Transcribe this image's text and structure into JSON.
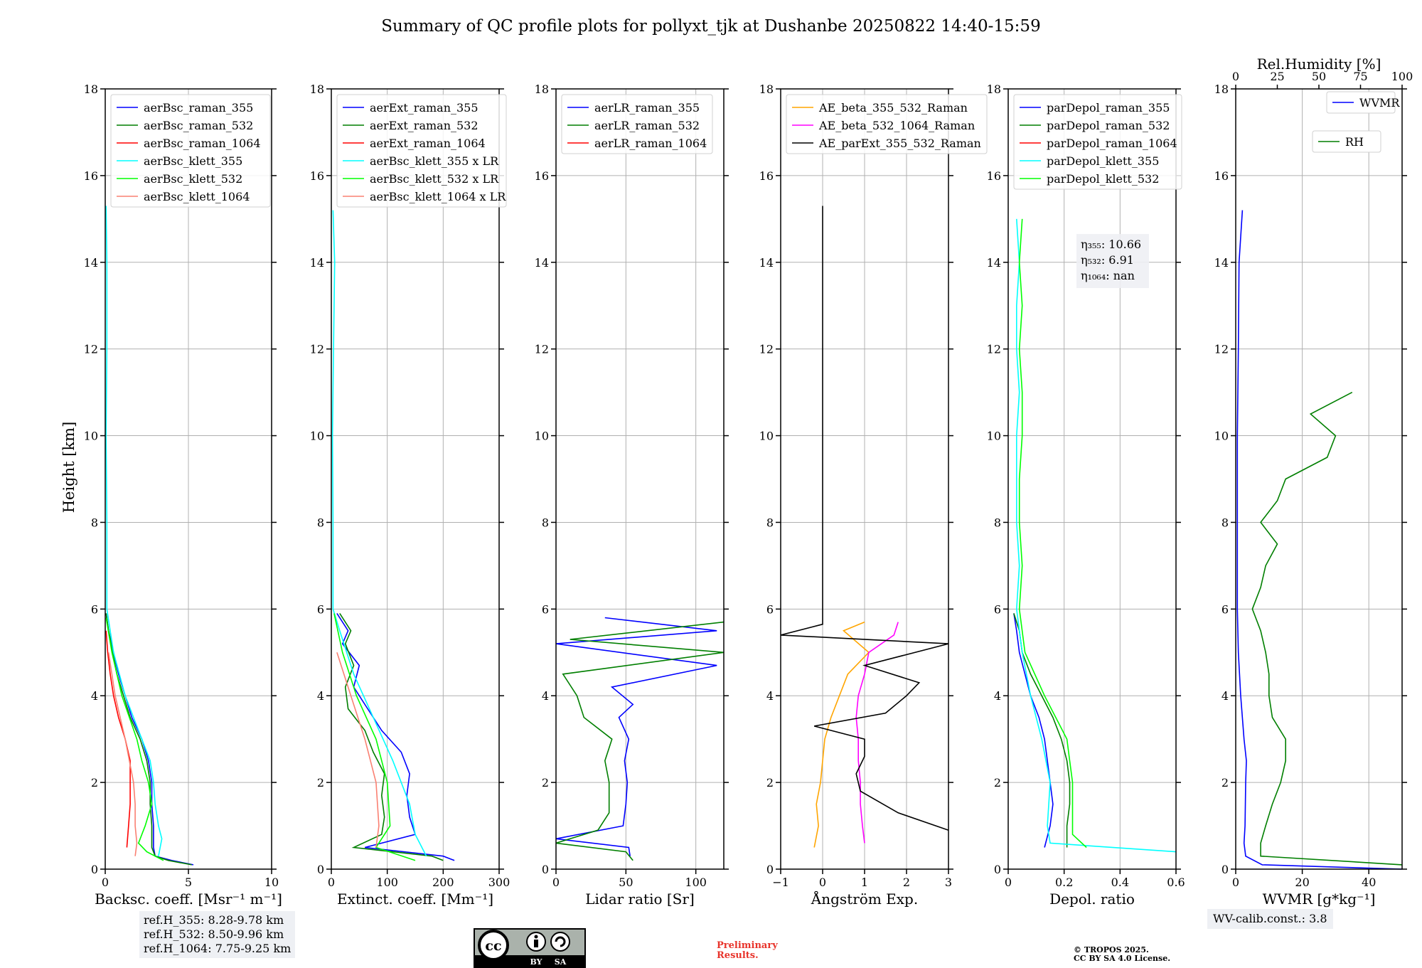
{
  "title": "Summary of QC profile plots for pollyxt_tjk at Dushanbe 20250822 14:40-15:59",
  "shared_ylabel": "Height [km]",
  "ref_heights": [
    "ref.H_355: 8.28-9.78 km",
    "ref.H_532: 8.50-9.96 km",
    "ref.H_1064: 7.75-9.25 km"
  ],
  "wv_calib": "WV-calib.const.: 3.8",
  "preliminary": [
    "Preliminary",
    "Results."
  ],
  "copyright": [
    "© TROPOS 2025.",
    "CC BY SA 4.0 License."
  ],
  "license_badge": {
    "cc": "cc",
    "by": "BY",
    "sa": "SA"
  },
  "colors": {
    "blue": "#0000ff",
    "green": "#007f00",
    "red": "#ff0000",
    "cyan": "#00ffff",
    "lime": "#00ff00",
    "salmon": "#fa8072",
    "orange": "#ffa500",
    "magenta": "#ff00ff",
    "black": "#000000"
  },
  "chart_data": [
    {
      "type": "line",
      "id": "backscatter",
      "xlabel": "Backsc. coeff. [Msr⁻¹ m⁻¹]",
      "ylabel": "Height [km]",
      "xlim": [
        0,
        10
      ],
      "ylim": [
        0,
        18
      ],
      "xticks": [
        0,
        5,
        10
      ],
      "yticks": [
        0,
        2,
        4,
        6,
        8,
        10,
        12,
        14,
        16,
        18
      ],
      "legend": "upper-left",
      "series": [
        {
          "name": "aerBsc_raman_355",
          "color": "#0000ff",
          "y": [
            0.1,
            0.2,
            0.3,
            0.5,
            0.7,
            1.0,
            1.5,
            2.0,
            2.5,
            3.0,
            3.5,
            4.0,
            4.5,
            5.0,
            5.5,
            5.9
          ],
          "x": [
            5.3,
            4.0,
            3.0,
            2.9,
            2.9,
            2.9,
            2.8,
            2.8,
            2.6,
            2.2,
            1.6,
            1.2,
            0.8,
            0.5,
            0.2,
            0.05
          ]
        },
        {
          "name": "aerBsc_raman_532",
          "color": "#007f00",
          "y": [
            0.1,
            0.2,
            0.3,
            0.5,
            0.7,
            1.0,
            1.5,
            2.0,
            2.5,
            3.0,
            3.5,
            4.0,
            4.5,
            5.0,
            5.5,
            5.9
          ],
          "x": [
            5.2,
            3.8,
            3.0,
            2.8,
            2.8,
            2.8,
            2.7,
            2.7,
            2.5,
            2.1,
            1.5,
            1.1,
            0.7,
            0.45,
            0.2,
            0.05
          ]
        },
        {
          "name": "aerBsc_raman_1064",
          "color": "#ff0000",
          "y": [
            0.5,
            1.0,
            1.5,
            2.0,
            2.5,
            3.0,
            3.5,
            4.0,
            4.5,
            5.0,
            5.5
          ],
          "x": [
            1.3,
            1.4,
            1.5,
            1.5,
            1.5,
            1.2,
            0.8,
            0.5,
            0.3,
            0.15,
            0.05
          ]
        },
        {
          "name": "aerBsc_klett_355",
          "color": "#00ffff",
          "y": [
            0.3,
            0.7,
            1.0,
            1.5,
            2.0,
            2.5,
            3.0,
            4.0,
            5.0,
            6.0,
            8.0,
            10.0,
            12.0,
            14.0,
            15.3
          ],
          "x": [
            3.2,
            3.4,
            3.2,
            3.0,
            2.9,
            2.7,
            2.2,
            1.2,
            0.5,
            0.1,
            0.1,
            0.05,
            0.1,
            0.1,
            0.05
          ]
        },
        {
          "name": "aerBsc_klett_532",
          "color": "#00ff00",
          "y": [
            0.2,
            0.4,
            0.6,
            1.0,
            1.5,
            2.0,
            2.5,
            3.0,
            4.0,
            5.0,
            5.8
          ],
          "x": [
            3.5,
            2.5,
            2.0,
            2.4,
            2.8,
            2.6,
            2.2,
            1.9,
            1.0,
            0.4,
            0.05
          ]
        },
        {
          "name": "aerBsc_klett_1064",
          "color": "#fa8072",
          "y": [
            0.3,
            0.6,
            1.0,
            1.5,
            2.0,
            3.0,
            4.0,
            5.0
          ],
          "x": [
            1.8,
            1.9,
            1.8,
            1.8,
            1.7,
            1.2,
            0.6,
            0.2
          ]
        }
      ]
    },
    {
      "type": "line",
      "id": "extinction",
      "xlabel": "Extinct. coeff. [Mm⁻¹]",
      "xlim": [
        0,
        300
      ],
      "ylim": [
        0,
        18
      ],
      "xticks": [
        0,
        100,
        200,
        300
      ],
      "yticks": [
        0,
        2,
        4,
        6,
        8,
        10,
        12,
        14,
        16,
        18
      ],
      "legend": "upper-left",
      "series": [
        {
          "name": "aerExt_raman_355",
          "color": "#0000ff",
          "y": [
            0.2,
            0.3,
            0.5,
            0.8,
            1.2,
            1.7,
            2.2,
            2.7,
            3.2,
            3.7,
            4.2,
            4.7,
            5.2,
            5.5,
            5.9
          ],
          "x": [
            220,
            200,
            60,
            150,
            140,
            135,
            140,
            125,
            90,
            65,
            40,
            50,
            20,
            30,
            10
          ]
        },
        {
          "name": "aerExt_raman_532",
          "color": "#007f00",
          "y": [
            0.2,
            0.3,
            0.5,
            0.8,
            1.2,
            1.7,
            2.2,
            2.7,
            3.2,
            3.7,
            4.2,
            4.7,
            5.2,
            5.5,
            5.9
          ],
          "x": [
            200,
            180,
            40,
            90,
            95,
            90,
            95,
            75,
            60,
            30,
            25,
            40,
            25,
            35,
            15
          ]
        },
        {
          "name": "aerExt_raman_1064",
          "color": "#ff0000",
          "y": [],
          "x": []
        },
        {
          "name": "aerBsc_klett_355 x LR",
          "color": "#00ffff",
          "y": [
            0.3,
            0.8,
            1.5,
            2.5,
            3.5,
            4.5,
            5.5,
            6.0,
            8.0,
            10.0,
            12.0,
            14.0,
            15.2
          ],
          "x": [
            170,
            150,
            140,
            110,
            75,
            40,
            15,
            3,
            3,
            2,
            4,
            6,
            3
          ]
        },
        {
          "name": "aerBsc_klett_532 x LR",
          "color": "#00ff00",
          "y": [
            0.2,
            0.5,
            1.0,
            2.0,
            3.0,
            4.0,
            5.0,
            5.9
          ],
          "x": [
            150,
            80,
            105,
            100,
            80,
            45,
            20,
            5
          ]
        },
        {
          "name": "aerBsc_klett_1064 x LR",
          "color": "#fa8072",
          "y": [
            0.5,
            1.0,
            2.0,
            3.0,
            4.0,
            5.0
          ],
          "x": [
            80,
            85,
            80,
            60,
            35,
            10
          ]
        }
      ]
    },
    {
      "type": "line",
      "id": "lidar_ratio",
      "xlabel": "Lidar ratio [Sr]",
      "xlim": [
        0,
        120
      ],
      "ylim": [
        0,
        18
      ],
      "xticks": [
        0,
        50,
        100
      ],
      "yticks": [
        0,
        2,
        4,
        6,
        8,
        10,
        12,
        14,
        16,
        18
      ],
      "legend": "upper-left",
      "series": [
        {
          "name": "aerLR_raman_355",
          "color": "#0000ff",
          "y": [
            0.3,
            0.5,
            0.7,
            1.0,
            1.5,
            2.0,
            2.5,
            3.0,
            3.5,
            3.8,
            4.2,
            4.7,
            5.2,
            5.5,
            5.8
          ],
          "x": [
            53,
            52,
            0,
            48,
            50,
            51,
            49,
            52,
            45,
            55,
            40,
            115,
            0,
            115,
            35
          ]
        },
        {
          "name": "aerLR_raman_532",
          "color": "#007f00",
          "y": [
            0.2,
            0.4,
            0.6,
            0.9,
            1.3,
            2.0,
            2.5,
            3.0,
            3.5,
            4.0,
            4.5,
            5.0,
            5.3,
            5.7
          ],
          "x": [
            55,
            50,
            0,
            30,
            38,
            38,
            35,
            40,
            20,
            15,
            5,
            120,
            10,
            120
          ]
        },
        {
          "name": "aerLR_raman_1064",
          "color": "#ff0000",
          "y": [],
          "x": []
        }
      ]
    },
    {
      "type": "line",
      "id": "angstrom",
      "xlabel": "Ångström Exp.",
      "xlim": [
        -1,
        3
      ],
      "ylim": [
        0,
        18
      ],
      "xticks": [
        -1,
        0,
        1,
        2,
        3
      ],
      "yticks": [
        0,
        2,
        4,
        6,
        8,
        10,
        12,
        14,
        16,
        18
      ],
      "legend": "upper-left",
      "series": [
        {
          "name": "AE_beta_355_532_Raman",
          "color": "#ffa500",
          "y": [
            0.5,
            1.0,
            1.5,
            2.0,
            2.5,
            3.0,
            3.5,
            4.0,
            4.5,
            5.0,
            5.5,
            5.7
          ],
          "x": [
            -0.2,
            -0.1,
            -0.15,
            -0.05,
            0.0,
            0.05,
            0.2,
            0.4,
            0.6,
            1.1,
            0.5,
            1.0
          ]
        },
        {
          "name": "AE_beta_532_1064_Raman",
          "color": "#ff00ff",
          "y": [
            0.6,
            1.0,
            1.5,
            2.0,
            2.5,
            3.0,
            3.5,
            4.0,
            4.5,
            5.0,
            5.4,
            5.7
          ],
          "x": [
            1.0,
            0.95,
            0.9,
            0.9,
            0.85,
            0.85,
            0.8,
            0.85,
            1.0,
            1.1,
            1.7,
            1.8
          ]
        },
        {
          "name": "AE_parExt_355_532_Raman",
          "color": "#000000",
          "y": [
            0.9,
            1.3,
            1.8,
            2.2,
            2.6,
            3.0,
            3.3,
            3.6,
            4.0,
            4.3,
            4.7,
            5.2,
            5.4,
            5.65,
            15.3
          ],
          "x": [
            3.0,
            1.8,
            0.9,
            0.8,
            1.0,
            1.0,
            -0.2,
            1.5,
            2.0,
            2.3,
            1.0,
            3.0,
            -1.0,
            0.0,
            0.0
          ]
        }
      ]
    },
    {
      "type": "line",
      "id": "depol",
      "xlabel": "Depol. ratio",
      "xlim": [
        0,
        0.6
      ],
      "ylim": [
        0,
        18
      ],
      "xticks": [
        0.0,
        0.2,
        0.4,
        0.6
      ],
      "yticks": [
        0,
        2,
        4,
        6,
        8,
        10,
        12,
        14,
        16,
        18
      ],
      "legend": "upper-left",
      "annotations": [
        "η₃₅₅: 10.66",
        "η₅₃₂: 6.91",
        "η₁₀₆₄: nan"
      ],
      "series": [
        {
          "name": "parDepol_raman_355",
          "color": "#0000ff",
          "y": [
            0.5,
            1.0,
            1.5,
            2.0,
            2.5,
            3.0,
            3.5,
            4.0,
            4.5,
            5.0,
            5.5,
            5.9
          ],
          "x": [
            0.13,
            0.15,
            0.16,
            0.15,
            0.14,
            0.13,
            0.11,
            0.08,
            0.06,
            0.04,
            0.03,
            0.02
          ]
        },
        {
          "name": "parDepol_raman_532",
          "color": "#007f00",
          "y": [
            0.5,
            1.0,
            1.5,
            2.0,
            2.5,
            3.0,
            3.5,
            4.0,
            4.5,
            5.0,
            5.5,
            5.9
          ],
          "x": [
            0.21,
            0.21,
            0.22,
            0.22,
            0.21,
            0.19,
            0.16,
            0.12,
            0.08,
            0.05,
            0.04,
            0.02
          ]
        },
        {
          "name": "parDepol_raman_1064",
          "color": "#ff0000",
          "y": [],
          "x": []
        },
        {
          "name": "parDepol_klett_355",
          "color": "#00ffff",
          "y": [
            0.4,
            0.6,
            1.0,
            2.0,
            3.0,
            4.0,
            5.0,
            6.0,
            7.0,
            8.0,
            9.0,
            10.0,
            11.0,
            12.0,
            13.0,
            14.0,
            15.0
          ],
          "x": [
            0.6,
            0.15,
            0.14,
            0.15,
            0.12,
            0.08,
            0.05,
            0.03,
            0.04,
            0.03,
            0.03,
            0.03,
            0.04,
            0.03,
            0.03,
            0.04,
            0.03
          ]
        },
        {
          "name": "parDepol_klett_532",
          "color": "#00ff00",
          "y": [
            0.5,
            0.8,
            1.5,
            2.0,
            2.5,
            3.0,
            3.5,
            4.0,
            5.0,
            6.0,
            7.0,
            8.0,
            9.0,
            10.0,
            11.0,
            12.0,
            13.0,
            14.0,
            15.0
          ],
          "x": [
            0.28,
            0.23,
            0.23,
            0.23,
            0.22,
            0.21,
            0.17,
            0.13,
            0.06,
            0.04,
            0.05,
            0.04,
            0.04,
            0.05,
            0.05,
            0.04,
            0.05,
            0.04,
            0.05
          ]
        }
      ]
    },
    {
      "type": "line",
      "id": "wvmr",
      "xlabel": "WVMR [g*kg⁻¹]",
      "top_xlabel": "Rel.Humidity [%]",
      "xlim": [
        0,
        50
      ],
      "top_xlim": [
        0,
        100
      ],
      "ylim": [
        0,
        18
      ],
      "xticks": [
        0,
        20,
        40
      ],
      "top_xticks": [
        0,
        25,
        50,
        75,
        100
      ],
      "yticks": [
        0,
        2,
        4,
        6,
        8,
        10,
        12,
        14,
        16,
        18
      ],
      "legend": "upper-right",
      "series": [
        {
          "name": "WVMR",
          "color": "#0000ff",
          "axis": "bottom",
          "y": [
            0.0,
            0.1,
            0.3,
            0.6,
            1.0,
            2.0,
            2.5,
            3.0,
            4.0,
            5.0,
            6.0,
            8.0,
            10.0,
            12.0,
            14.0,
            15.2
          ],
          "x": [
            50,
            8,
            3,
            2.5,
            2.8,
            3.0,
            3.2,
            2.5,
            1.5,
            0.8,
            0.5,
            0.5,
            0.5,
            0.8,
            1.0,
            2.0
          ]
        },
        {
          "name": "RH",
          "color": "#007f00",
          "axis": "top",
          "y": [
            0.1,
            0.3,
            0.6,
            1.0,
            1.5,
            2.0,
            2.5,
            3.0,
            3.5,
            4.0,
            4.5,
            5.0,
            5.5,
            6.0,
            6.5,
            7.0,
            7.5,
            8.0,
            8.5,
            9.0,
            9.5,
            10.0,
            10.5,
            11.0
          ],
          "x": [
            100,
            15,
            15,
            18,
            22,
            27,
            30,
            30,
            22,
            20,
            20,
            18,
            15,
            10,
            15,
            18,
            25,
            15,
            25,
            30,
            55,
            60,
            45,
            70
          ]
        }
      ]
    }
  ]
}
